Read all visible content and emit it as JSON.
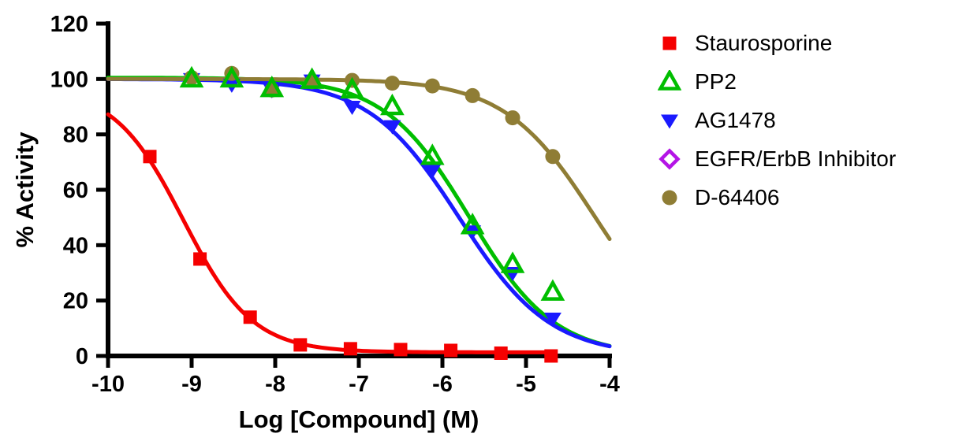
{
  "figure": {
    "background": "#ffffff",
    "axis_color": "#000000"
  },
  "chart_data": {
    "type": "scatter",
    "title": "",
    "xlabel": "Log [Compound] (M)",
    "ylabel": "% Activity",
    "xlim": [
      -10,
      -4
    ],
    "ylim": [
      0,
      120
    ],
    "x_ticks": [
      -10,
      -9,
      -8,
      -7,
      -6,
      -5,
      -4
    ],
    "y_ticks": [
      0,
      20,
      40,
      60,
      80,
      100,
      120
    ],
    "grid": false,
    "legend_position": "right-outside",
    "curve_model": "four-parameter logistic: y = bottom + (top - bottom) / (1 + 10^(hill*(x - logIC50)))",
    "series": [
      {
        "name": "Staurosporine",
        "color": "#F50000",
        "marker": "square-filled",
        "x": [
          -9.5,
          -8.9,
          -8.3,
          -7.7,
          -7.1,
          -6.5,
          -5.9,
          -5.3,
          -4.7
        ],
        "values": [
          72,
          35,
          14,
          4,
          2.6,
          2.3,
          2,
          1,
          0
        ],
        "fit": {
          "top": 97,
          "bottom": 1.3,
          "logIC50": -9.1,
          "hill": 1.05,
          "x_range": [
            -10,
            -4.68
          ]
        }
      },
      {
        "name": "PP2",
        "color": "#00BE00",
        "marker": "triangle-up-open",
        "x": [
          -9.0,
          -8.52,
          -8.04,
          -7.56,
          -7.08,
          -6.6,
          -6.12,
          -5.64,
          -5.16,
          -4.68
        ],
        "values": [
          100,
          100,
          96.5,
          99.5,
          96,
          90,
          72,
          47,
          33,
          23
        ],
        "fit": {
          "top": 100.5,
          "bottom": 0,
          "logIC50": -5.68,
          "hill": 0.85,
          "x_range": [
            -10,
            -4
          ]
        }
      },
      {
        "name": "AG1478",
        "color": "#1A1AFF",
        "marker": "triangle-down-filled",
        "x": [
          -9.0,
          -8.52,
          -8.04,
          -7.56,
          -7.08,
          -6.6,
          -6.12,
          -5.64,
          -5.16,
          -4.68
        ],
        "values": [
          100,
          98,
          96,
          99.5,
          90,
          83,
          67,
          45,
          30,
          13.5
        ],
        "fit": {
          "top": 100,
          "bottom": 0,
          "logIC50": -5.8,
          "hill": 0.8,
          "x_range": [
            -10,
            -4
          ]
        }
      },
      {
        "name": "EGFR/ErbB Inhibitor",
        "color": "#B414E6",
        "marker": "diamond-open",
        "x": [],
        "values": []
      },
      {
        "name": "D-64406",
        "color": "#8F7D35",
        "marker": "circle-filled",
        "x": [
          -9.0,
          -8.52,
          -8.04,
          -7.56,
          -7.08,
          -6.6,
          -6.12,
          -5.64,
          -5.16,
          -4.68
        ],
        "values": [
          100.5,
          102,
          96,
          99,
          99.5,
          98.5,
          97.5,
          94,
          86,
          72
        ],
        "fit": {
          "top": 100,
          "bottom": 0,
          "logIC50": -4.17,
          "hill": 0.8,
          "x_range": [
            -10,
            -4
          ]
        }
      }
    ]
  }
}
